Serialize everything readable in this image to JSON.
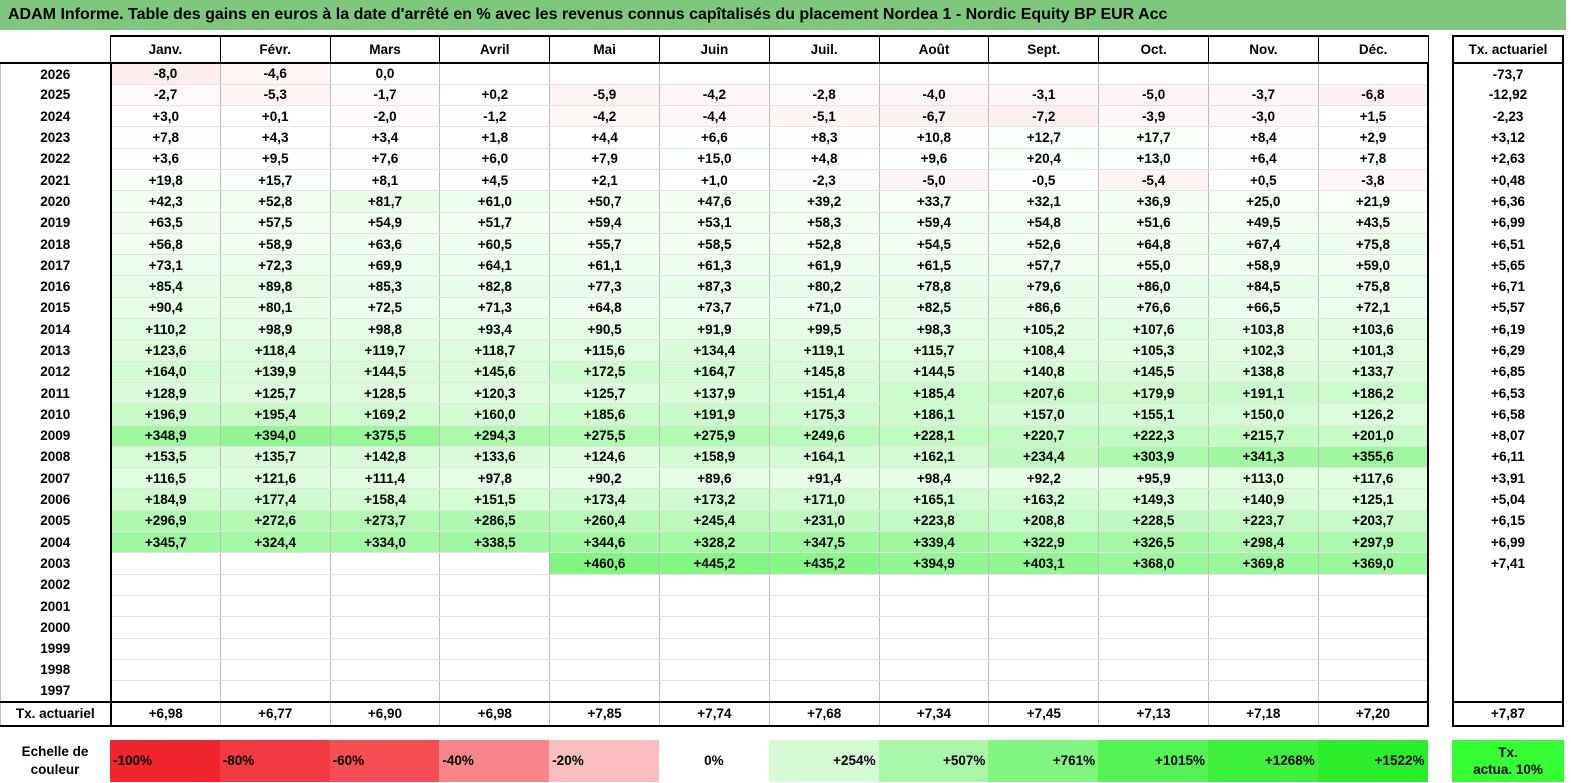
{
  "title": "ADAM Informe. Table des gains en euros à la date d'arrêté en % avec les revenus connus capîtalisés du placement Nordea 1 - Nordic Equity BP EUR Acc",
  "months": [
    "Janv.",
    "Févr.",
    "Mars",
    "Avril",
    "Mai",
    "Juin",
    "Juil.",
    "Août",
    "Sept.",
    "Oct.",
    "Nov.",
    "Déc."
  ],
  "side_header": "Tx. actuariel",
  "rows": [
    {
      "year": "2026",
      "values": [
        "-8,0",
        "-4,6",
        "0,0",
        "",
        "",
        "",
        "",
        "",
        "",
        "",
        "",
        ""
      ],
      "tx": "-73,7"
    },
    {
      "year": "2025",
      "values": [
        "-2,7",
        "-5,3",
        "-1,7",
        "+0,2",
        "-5,9",
        "-4,2",
        "-2,8",
        "-4,0",
        "-3,1",
        "-5,0",
        "-3,7",
        "-6,8"
      ],
      "tx": "-12,92"
    },
    {
      "year": "2024",
      "values": [
        "+3,0",
        "+0,1",
        "-2,0",
        "-1,2",
        "-4,2",
        "-4,4",
        "-5,1",
        "-6,7",
        "-7,2",
        "-3,9",
        "-3,0",
        "+1,5"
      ],
      "tx": "-2,23"
    },
    {
      "year": "2023",
      "values": [
        "+7,8",
        "+4,3",
        "+3,4",
        "+1,8",
        "+4,4",
        "+6,6",
        "+8,3",
        "+10,8",
        "+12,7",
        "+17,7",
        "+8,4",
        "+2,9"
      ],
      "tx": "+3,12"
    },
    {
      "year": "2022",
      "values": [
        "+3,6",
        "+9,5",
        "+7,6",
        "+6,0",
        "+7,9",
        "+15,0",
        "+4,8",
        "+9,6",
        "+20,4",
        "+13,0",
        "+6,4",
        "+7,8"
      ],
      "tx": "+2,63"
    },
    {
      "year": "2021",
      "values": [
        "+19,8",
        "+15,7",
        "+8,1",
        "+4,5",
        "+2,1",
        "+1,0",
        "-2,3",
        "-5,0",
        "-0,5",
        "-5,4",
        "+0,5",
        "-3,8"
      ],
      "tx": "+0,48"
    },
    {
      "year": "2020",
      "values": [
        "+42,3",
        "+52,8",
        "+81,7",
        "+61,0",
        "+50,7",
        "+47,6",
        "+39,2",
        "+33,7",
        "+32,1",
        "+36,9",
        "+25,0",
        "+21,9"
      ],
      "tx": "+6,36"
    },
    {
      "year": "2019",
      "values": [
        "+63,5",
        "+57,5",
        "+54,9",
        "+51,7",
        "+59,4",
        "+53,1",
        "+58,3",
        "+59,4",
        "+54,8",
        "+51,6",
        "+49,5",
        "+43,5"
      ],
      "tx": "+6,99"
    },
    {
      "year": "2018",
      "values": [
        "+56,8",
        "+58,9",
        "+63,6",
        "+60,5",
        "+55,7",
        "+58,5",
        "+52,8",
        "+54,5",
        "+52,6",
        "+64,8",
        "+67,4",
        "+75,8"
      ],
      "tx": "+6,51"
    },
    {
      "year": "2017",
      "values": [
        "+73,1",
        "+72,3",
        "+69,9",
        "+64,1",
        "+61,1",
        "+61,3",
        "+61,9",
        "+61,5",
        "+57,7",
        "+55,0",
        "+58,9",
        "+59,0"
      ],
      "tx": "+5,65"
    },
    {
      "year": "2016",
      "values": [
        "+85,4",
        "+89,8",
        "+85,3",
        "+82,8",
        "+77,3",
        "+87,3",
        "+80,2",
        "+78,8",
        "+79,6",
        "+86,0",
        "+84,5",
        "+75,8"
      ],
      "tx": "+6,71"
    },
    {
      "year": "2015",
      "values": [
        "+90,4",
        "+80,1",
        "+72,5",
        "+71,3",
        "+64,8",
        "+73,7",
        "+71,0",
        "+82,5",
        "+86,6",
        "+76,6",
        "+66,5",
        "+72,1"
      ],
      "tx": "+5,57"
    },
    {
      "year": "2014",
      "values": [
        "+110,2",
        "+98,9",
        "+98,8",
        "+93,4",
        "+90,5",
        "+91,9",
        "+99,5",
        "+98,3",
        "+105,2",
        "+107,6",
        "+103,8",
        "+103,6"
      ],
      "tx": "+6,19"
    },
    {
      "year": "2013",
      "values": [
        "+123,6",
        "+118,4",
        "+119,7",
        "+118,7",
        "+115,6",
        "+134,4",
        "+119,1",
        "+115,7",
        "+108,4",
        "+105,3",
        "+102,3",
        "+101,3"
      ],
      "tx": "+6,29"
    },
    {
      "year": "2012",
      "values": [
        "+164,0",
        "+139,9",
        "+144,5",
        "+145,6",
        "+172,5",
        "+164,7",
        "+145,8",
        "+144,5",
        "+140,8",
        "+145,5",
        "+138,8",
        "+133,7"
      ],
      "tx": "+6,85"
    },
    {
      "year": "2011",
      "values": [
        "+128,9",
        "+125,7",
        "+128,5",
        "+120,3",
        "+125,7",
        "+137,9",
        "+151,4",
        "+185,4",
        "+207,6",
        "+179,9",
        "+191,1",
        "+186,2"
      ],
      "tx": "+6,53"
    },
    {
      "year": "2010",
      "values": [
        "+196,9",
        "+195,4",
        "+169,2",
        "+160,0",
        "+185,6",
        "+191,9",
        "+175,3",
        "+186,1",
        "+157,0",
        "+155,1",
        "+150,0",
        "+126,2"
      ],
      "tx": "+6,58"
    },
    {
      "year": "2009",
      "values": [
        "+348,9",
        "+394,0",
        "+375,5",
        "+294,3",
        "+275,5",
        "+275,9",
        "+249,6",
        "+228,1",
        "+220,7",
        "+222,3",
        "+215,7",
        "+201,0"
      ],
      "tx": "+8,07"
    },
    {
      "year": "2008",
      "values": [
        "+153,5",
        "+135,7",
        "+142,8",
        "+133,6",
        "+124,6",
        "+158,9",
        "+164,1",
        "+162,1",
        "+234,4",
        "+303,9",
        "+341,3",
        "+355,6"
      ],
      "tx": "+6,11"
    },
    {
      "year": "2007",
      "values": [
        "+116,5",
        "+121,6",
        "+111,4",
        "+97,8",
        "+90,2",
        "+89,6",
        "+91,4",
        "+98,4",
        "+92,2",
        "+95,9",
        "+113,0",
        "+117,6"
      ],
      "tx": "+3,91"
    },
    {
      "year": "2006",
      "values": [
        "+184,9",
        "+177,4",
        "+158,4",
        "+151,5",
        "+173,4",
        "+173,2",
        "+171,0",
        "+165,1",
        "+163,2",
        "+149,3",
        "+140,9",
        "+125,1"
      ],
      "tx": "+5,04"
    },
    {
      "year": "2005",
      "values": [
        "+296,9",
        "+272,6",
        "+273,7",
        "+286,5",
        "+260,4",
        "+245,4",
        "+231,0",
        "+223,8",
        "+208,8",
        "+228,5",
        "+223,7",
        "+203,7"
      ],
      "tx": "+6,15"
    },
    {
      "year": "2004",
      "values": [
        "+345,7",
        "+324,4",
        "+334,0",
        "+338,5",
        "+344,6",
        "+328,2",
        "+347,5",
        "+339,4",
        "+322,9",
        "+326,5",
        "+298,4",
        "+297,9"
      ],
      "tx": "+6,99"
    },
    {
      "year": "2003",
      "values": [
        "",
        "",
        "",
        "",
        "+460,6",
        "+445,2",
        "+435,2",
        "+394,9",
        "+403,1",
        "+368,0",
        "+369,8",
        "+369,0"
      ],
      "tx": "+7,41"
    },
    {
      "year": "2002",
      "values": [
        "",
        "",
        "",
        "",
        "",
        "",
        "",
        "",
        "",
        "",
        "",
        ""
      ],
      "tx": ""
    },
    {
      "year": "2001",
      "values": [
        "",
        "",
        "",
        "",
        "",
        "",
        "",
        "",
        "",
        "",
        "",
        ""
      ],
      "tx": ""
    },
    {
      "year": "2000",
      "values": [
        "",
        "",
        "",
        "",
        "",
        "",
        "",
        "",
        "",
        "",
        "",
        ""
      ],
      "tx": ""
    },
    {
      "year": "1999",
      "values": [
        "",
        "",
        "",
        "",
        "",
        "",
        "",
        "",
        "",
        "",
        "",
        ""
      ],
      "tx": ""
    },
    {
      "year": "1998",
      "values": [
        "",
        "",
        "",
        "",
        "",
        "",
        "",
        "",
        "",
        "",
        "",
        ""
      ],
      "tx": ""
    },
    {
      "year": "1997",
      "values": [
        "",
        "",
        "",
        "",
        "",
        "",
        "",
        "",
        "",
        "",
        "",
        ""
      ],
      "tx": ""
    }
  ],
  "tx_row": {
    "label": "Tx. actuariel",
    "values": [
      "+6,98",
      "+6,77",
      "+6,90",
      "+6,98",
      "+7,85",
      "+7,74",
      "+7,68",
      "+7,34",
      "+7,45",
      "+7,13",
      "+7,18",
      "+7,20"
    ],
    "total": "+7,87"
  },
  "scale": {
    "label_line1": "Echelle de",
    "label_line2": "couleur",
    "items": [
      {
        "label": "-100%",
        "color": "#f0242d",
        "kind": "neg"
      },
      {
        "label": "-80%",
        "color": "#f23a42",
        "kind": "neg"
      },
      {
        "label": "-60%",
        "color": "#f54f55",
        "kind": "neg"
      },
      {
        "label": "-40%",
        "color": "#f88589",
        "kind": "neg"
      },
      {
        "label": "-20%",
        "color": "#fbbdbf",
        "kind": "neg"
      },
      {
        "label": "0%",
        "color": "#ffffff",
        "kind": "zero"
      },
      {
        "label": "+254%",
        "color": "#d4fbd4",
        "kind": "pos"
      },
      {
        "label": "+507%",
        "color": "#a9f8a9",
        "kind": "pos"
      },
      {
        "label": "+761%",
        "color": "#80f580",
        "kind": "pos"
      },
      {
        "label": "+1015%",
        "color": "#55f255",
        "kind": "pos"
      },
      {
        "label": "+1268%",
        "color": "#3cf03c",
        "kind": "pos"
      },
      {
        "label": "+1522%",
        "color": "#2aee2a",
        "kind": "pos"
      }
    ],
    "tx_line1": "Tx.",
    "tx_line2": "actua. 10%",
    "tx_color": "#33ff33"
  }
}
